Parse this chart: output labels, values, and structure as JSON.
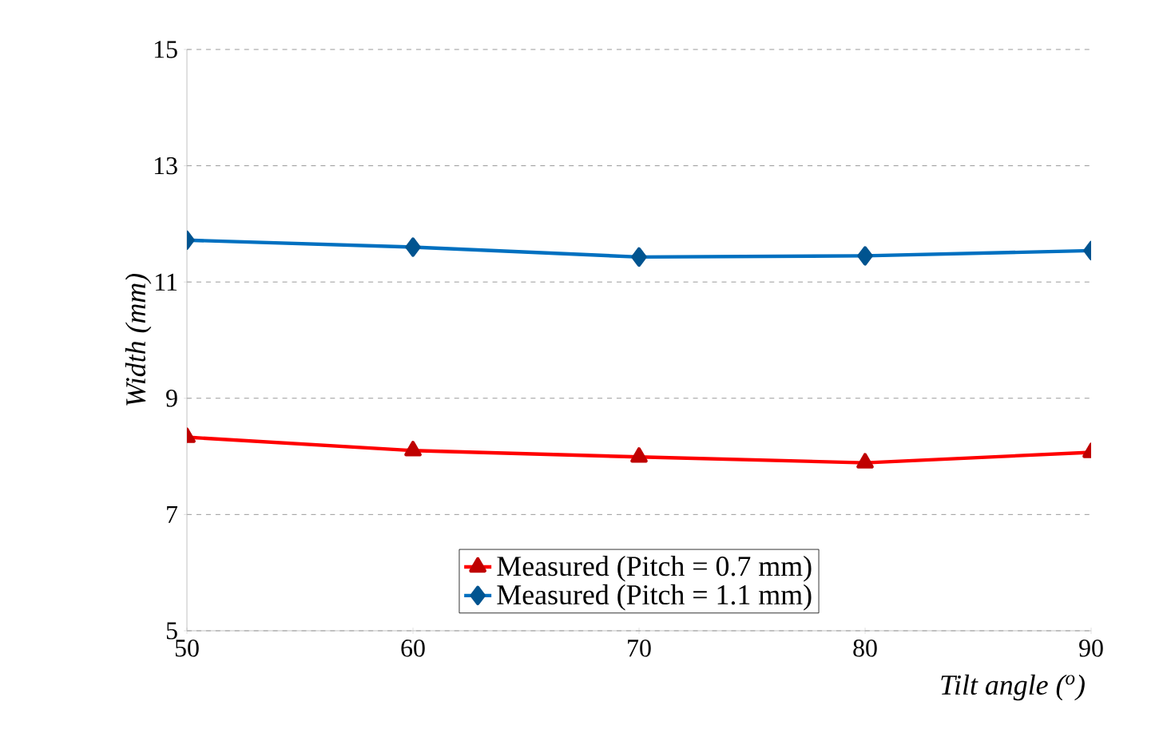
{
  "chart_data": {
    "type": "line",
    "xlabel": "Tilt angle ($^{o}$)",
    "ylabel": "Width (mm)",
    "x": [
      50,
      60,
      70,
      80,
      90
    ],
    "series": [
      {
        "name": "Measured (Pitch = 0.7 mm)",
        "color": "#ff0000",
        "marker": "triangle",
        "values": [
          8.33,
          8.1,
          7.99,
          7.89,
          8.07
        ]
      },
      {
        "name": "Measured (Pitch = 1.1 mm)",
        "color": "#0070c0",
        "marker": "diamond",
        "values": [
          11.72,
          11.6,
          11.43,
          11.45,
          11.54
        ]
      }
    ],
    "xlim": [
      50,
      90
    ],
    "ylim": [
      5,
      15
    ],
    "xticks": [
      50,
      60,
      70,
      80,
      90
    ],
    "yticks": [
      5,
      7,
      9,
      11,
      13,
      15
    ],
    "grid": "y",
    "legend": "bottom",
    "line_style": "solid"
  }
}
